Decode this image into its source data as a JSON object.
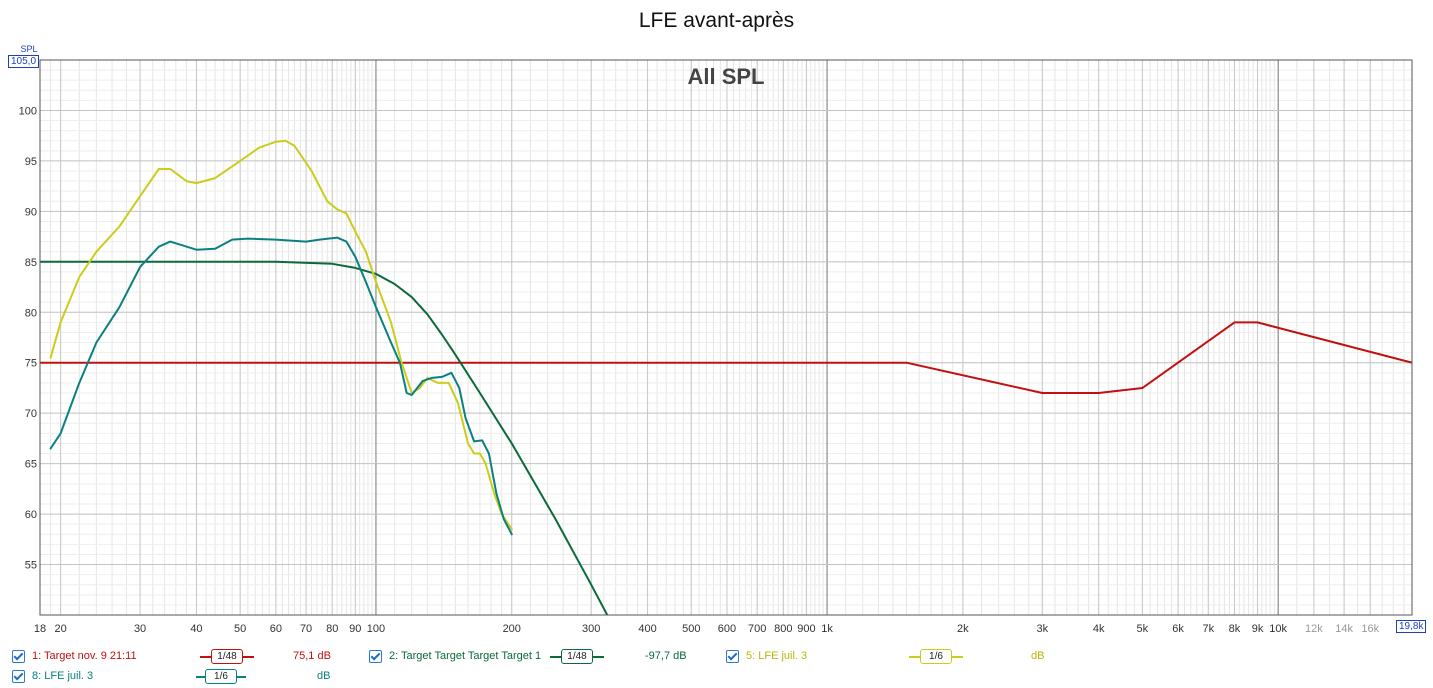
{
  "title": "LFE avant-après",
  "chart_data": {
    "type": "line",
    "title": "LFE avant-après",
    "overlay_label": "All SPL",
    "ylabel": "SPL",
    "x_scale": "log",
    "xlim": [
      18,
      19800
    ],
    "ylim": [
      50,
      105
    ],
    "ylim_top_label": "105,0",
    "xlim_right_label": "19,8k",
    "grid": true,
    "y_ticks": [
      55,
      60,
      65,
      70,
      75,
      80,
      85,
      90,
      95,
      100
    ],
    "x_ticks": [
      {
        "v": 18,
        "label": "18"
      },
      {
        "v": 20,
        "label": "20"
      },
      {
        "v": 30,
        "label": "30"
      },
      {
        "v": 40,
        "label": "40"
      },
      {
        "v": 50,
        "label": "50"
      },
      {
        "v": 60,
        "label": "60"
      },
      {
        "v": 70,
        "label": "70"
      },
      {
        "v": 80,
        "label": "80"
      },
      {
        "v": 90,
        "label": "90"
      },
      {
        "v": 100,
        "label": "100"
      },
      {
        "v": 200,
        "label": "200"
      },
      {
        "v": 300,
        "label": "300"
      },
      {
        "v": 400,
        "label": "400"
      },
      {
        "v": 500,
        "label": "500"
      },
      {
        "v": 600,
        "label": "600"
      },
      {
        "v": 700,
        "label": "700"
      },
      {
        "v": 800,
        "label": "800"
      },
      {
        "v": 900,
        "label": "900"
      },
      {
        "v": 1000,
        "label": "1k"
      },
      {
        "v": 2000,
        "label": "2k"
      },
      {
        "v": 3000,
        "label": "3k"
      },
      {
        "v": 4000,
        "label": "4k"
      },
      {
        "v": 5000,
        "label": "5k"
      },
      {
        "v": 6000,
        "label": "6k"
      },
      {
        "v": 7000,
        "label": "7k"
      },
      {
        "v": 8000,
        "label": "8k"
      },
      {
        "v": 9000,
        "label": "9k"
      },
      {
        "v": 10000,
        "label": "10k"
      },
      {
        "v": 12000,
        "label": "12k",
        "minor": true
      },
      {
        "v": 14000,
        "label": "14k",
        "minor": true
      },
      {
        "v": 16000,
        "label": "16k",
        "minor": true
      }
    ],
    "series": [
      {
        "name": "1: Target nov. 9 21:11",
        "color": "#c01010",
        "points": [
          [
            18,
            75
          ],
          [
            1500,
            75
          ],
          [
            3000,
            72
          ],
          [
            4000,
            72
          ],
          [
            5000,
            72.5
          ],
          [
            8000,
            79
          ],
          [
            9000,
            79
          ],
          [
            19800,
            75
          ]
        ]
      },
      {
        "name": "2: Target Target Target Target 1",
        "color": "#0a6a3a",
        "points": [
          [
            18,
            85
          ],
          [
            30,
            85
          ],
          [
            60,
            85
          ],
          [
            80,
            84.8
          ],
          [
            90,
            84.4
          ],
          [
            100,
            83.8
          ],
          [
            110,
            82.8
          ],
          [
            120,
            81.5
          ],
          [
            130,
            79.8
          ],
          [
            140,
            77.8
          ],
          [
            150,
            75.8
          ],
          [
            170,
            72
          ],
          [
            200,
            67
          ],
          [
            250,
            59.5
          ],
          [
            300,
            53
          ],
          [
            330,
            49.5
          ]
        ]
      },
      {
        "name": "5: LFE juil. 3",
        "color": "#cccc1a",
        "points": [
          [
            19,
            75.5
          ],
          [
            20,
            79
          ],
          [
            22,
            83.5
          ],
          [
            24,
            86
          ],
          [
            27,
            88.5
          ],
          [
            30,
            91.5
          ],
          [
            33,
            94.2
          ],
          [
            35,
            94.2
          ],
          [
            38,
            93
          ],
          [
            40,
            92.8
          ],
          [
            44,
            93.3
          ],
          [
            50,
            95
          ],
          [
            55,
            96.3
          ],
          [
            60,
            96.9
          ],
          [
            63,
            97
          ],
          [
            66,
            96.5
          ],
          [
            72,
            94
          ],
          [
            78,
            91
          ],
          [
            82,
            90.2
          ],
          [
            86,
            89.8
          ],
          [
            90,
            88
          ],
          [
            95,
            86
          ],
          [
            100,
            83
          ],
          [
            108,
            79
          ],
          [
            114,
            75
          ],
          [
            120,
            72
          ],
          [
            125,
            72.5
          ],
          [
            130,
            73.5
          ],
          [
            137,
            73
          ],
          [
            145,
            73
          ],
          [
            152,
            71
          ],
          [
            160,
            67
          ],
          [
            165,
            66
          ],
          [
            170,
            66
          ],
          [
            175,
            65
          ],
          [
            183,
            62
          ],
          [
            190,
            60
          ],
          [
            200,
            58.5
          ]
        ]
      },
      {
        "name": "8: LFE juil. 3",
        "color": "#0a8080",
        "points": [
          [
            19,
            66.5
          ],
          [
            20,
            68
          ],
          [
            22,
            73
          ],
          [
            24,
            77
          ],
          [
            27,
            80.5
          ],
          [
            30,
            84.5
          ],
          [
            33,
            86.5
          ],
          [
            35,
            87
          ],
          [
            40,
            86.2
          ],
          [
            44,
            86.3
          ],
          [
            48,
            87.2
          ],
          [
            52,
            87.3
          ],
          [
            60,
            87.2
          ],
          [
            70,
            87
          ],
          [
            75,
            87.2
          ],
          [
            82,
            87.4
          ],
          [
            86,
            87
          ],
          [
            90,
            85.5
          ],
          [
            95,
            83
          ],
          [
            100,
            80.5
          ],
          [
            108,
            77
          ],
          [
            113,
            75
          ],
          [
            117,
            72
          ],
          [
            120,
            71.8
          ],
          [
            127,
            73.2
          ],
          [
            133,
            73.5
          ],
          [
            140,
            73.6
          ],
          [
            147,
            74
          ],
          [
            153,
            72.5
          ],
          [
            158,
            69.5
          ],
          [
            165,
            67.2
          ],
          [
            172,
            67.3
          ],
          [
            178,
            66
          ],
          [
            185,
            62
          ],
          [
            192,
            59.5
          ],
          [
            200,
            58
          ]
        ]
      }
    ]
  },
  "legend": [
    {
      "label": "1: Target nov. 9 21:11",
      "smoothing": "1/48",
      "value": "75,1 dB",
      "color": "#c01010"
    },
    {
      "label": "2: Target Target Target Target 1",
      "smoothing": "1/48",
      "value": "-97,7 dB",
      "color": "#0a6a3a"
    },
    {
      "label": "5: LFE juil. 3",
      "smoothing": "1/6",
      "value": "dB",
      "color": "#b8b800"
    },
    {
      "label": "8: LFE juil. 3",
      "smoothing": "1/6",
      "value": "dB",
      "color": "#0a8080"
    }
  ]
}
